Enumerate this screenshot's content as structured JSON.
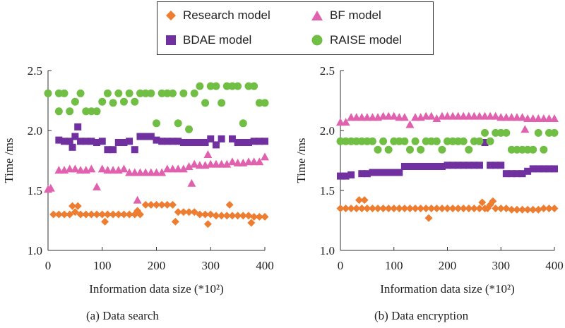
{
  "legend": [
    {
      "name": "Research model",
      "marker": "diamond",
      "color": "#ED7D31"
    },
    {
      "name": "BF model",
      "marker": "triangle",
      "color": "#E062AF"
    },
    {
      "name": "BDAE model",
      "marker": "square",
      "color": "#7030A0"
    },
    {
      "name": "RAISE model",
      "marker": "circle",
      "color": "#70BF44"
    }
  ],
  "captions": {
    "left": "(a) Data search",
    "right": "(b) Data encryption"
  },
  "chart_data": [
    {
      "type": "scatter",
      "title": "(a) Data search",
      "xlabel": "Information data size (*10²)",
      "ylabel": "Time /ms",
      "xlim": [
        0,
        400
      ],
      "ylim": [
        1.0,
        2.5
      ],
      "xticks": [
        "0",
        "100",
        "200",
        "300",
        "400"
      ],
      "yticks": [
        "1.0",
        "1.5",
        "2.0",
        "2.5"
      ],
      "grid": false,
      "series": [
        {
          "name": "Research model",
          "marker": "diamond",
          "color": "#ED7D31",
          "x": [
            10,
            20,
            30,
            40,
            45,
            50,
            55,
            60,
            70,
            80,
            90,
            100,
            105,
            110,
            120,
            130,
            140,
            150,
            160,
            165,
            170,
            180,
            190,
            200,
            210,
            220,
            230,
            235,
            240,
            250,
            260,
            270,
            280,
            290,
            295,
            300,
            310,
            320,
            330,
            335,
            340,
            350,
            360,
            370,
            375,
            380,
            390,
            400
          ],
          "y": [
            1.3,
            1.3,
            1.3,
            1.3,
            1.37,
            1.32,
            1.37,
            1.3,
            1.3,
            1.3,
            1.3,
            1.3,
            1.24,
            1.3,
            1.3,
            1.3,
            1.3,
            1.3,
            1.3,
            1.33,
            1.3,
            1.38,
            1.38,
            1.38,
            1.38,
            1.38,
            1.38,
            1.24,
            1.32,
            1.32,
            1.32,
            1.32,
            1.3,
            1.3,
            1.22,
            1.3,
            1.29,
            1.29,
            1.29,
            1.38,
            1.29,
            1.29,
            1.29,
            1.29,
            1.23,
            1.28,
            1.28,
            1.28
          ]
        },
        {
          "name": "BF model",
          "marker": "triangle",
          "color": "#E062AF",
          "x": [
            0,
            5,
            20,
            30,
            40,
            50,
            60,
            70,
            80,
            90,
            100,
            110,
            120,
            130,
            140,
            150,
            160,
            165,
            170,
            180,
            190,
            200,
            210,
            220,
            230,
            240,
            250,
            260,
            265,
            270,
            280,
            290,
            295,
            300,
            310,
            320,
            330,
            340,
            350,
            360,
            370,
            380,
            390,
            400
          ],
          "y": [
            1.51,
            1.52,
            1.67,
            1.67,
            1.68,
            1.68,
            1.67,
            1.67,
            1.68,
            1.53,
            1.68,
            1.67,
            1.67,
            1.67,
            1.68,
            1.65,
            1.65,
            1.42,
            1.65,
            1.65,
            1.65,
            1.65,
            1.65,
            1.68,
            1.68,
            1.68,
            1.68,
            1.7,
            1.56,
            1.72,
            1.71,
            1.71,
            1.8,
            1.72,
            1.72,
            1.72,
            1.72,
            1.74,
            1.73,
            1.73,
            1.74,
            1.74,
            1.74,
            1.78
          ]
        },
        {
          "name": "BDAE model",
          "marker": "square",
          "color": "#7030A0",
          "x": [
            20,
            30,
            40,
            45,
            50,
            55,
            60,
            70,
            80,
            90,
            100,
            110,
            120,
            130,
            140,
            150,
            160,
            170,
            180,
            190,
            200,
            210,
            220,
            230,
            240,
            250,
            260,
            270,
            280,
            290,
            300,
            310,
            320,
            340,
            350,
            360,
            370,
            380,
            390,
            400
          ],
          "y": [
            1.92,
            1.91,
            1.91,
            1.86,
            1.95,
            2.03,
            1.91,
            1.91,
            1.91,
            1.9,
            1.91,
            1.84,
            1.84,
            1.9,
            1.9,
            1.91,
            1.84,
            1.95,
            1.95,
            1.95,
            1.92,
            1.91,
            1.91,
            1.91,
            1.91,
            1.9,
            1.9,
            1.9,
            1.9,
            1.9,
            1.93,
            1.88,
            1.93,
            1.93,
            1.9,
            1.9,
            1.9,
            1.91,
            1.91,
            1.91
          ]
        },
        {
          "name": "RAISE model",
          "marker": "circle",
          "color": "#70BF44",
          "x": [
            0,
            20,
            20,
            30,
            40,
            50,
            60,
            70,
            80,
            90,
            100,
            110,
            120,
            130,
            140,
            150,
            160,
            170,
            180,
            190,
            200,
            210,
            220,
            230,
            240,
            250,
            260,
            270,
            280,
            290,
            300,
            310,
            320,
            330,
            340,
            350,
            360,
            370,
            380,
            390,
            400
          ],
          "y": [
            2.31,
            2.16,
            2.31,
            2.31,
            2.16,
            2.24,
            2.31,
            2.16,
            2.16,
            2.16,
            2.24,
            2.31,
            2.23,
            2.31,
            2.24,
            2.31,
            2.24,
            2.31,
            2.31,
            2.31,
            2.06,
            2.31,
            2.31,
            2.31,
            2.06,
            2.31,
            2.01,
            2.31,
            2.37,
            2.23,
            2.37,
            2.37,
            2.23,
            2.37,
            2.37,
            2.37,
            2.06,
            2.37,
            2.37,
            2.23,
            2.23
          ]
        }
      ]
    },
    {
      "type": "scatter",
      "title": "(b) Data encryption",
      "xlabel": "Information data size (*10²)",
      "ylabel": "Time /ms",
      "xlim": [
        0,
        400
      ],
      "ylim": [
        1.0,
        2.5
      ],
      "xticks": [
        "0",
        "100",
        "200",
        "300",
        "400"
      ],
      "yticks": [
        "1.0",
        "1.5",
        "2.0",
        "2.5"
      ],
      "grid": false,
      "series": [
        {
          "name": "Research model",
          "marker": "diamond",
          "color": "#ED7D31",
          "x": [
            0,
            10,
            20,
            30,
            35,
            40,
            45,
            50,
            60,
            70,
            80,
            90,
            100,
            110,
            120,
            130,
            140,
            150,
            160,
            165,
            170,
            180,
            190,
            200,
            210,
            220,
            230,
            240,
            250,
            260,
            265,
            270,
            275,
            280,
            285,
            290,
            300,
            310,
            320,
            330,
            340,
            350,
            360,
            370,
            380,
            390,
            400
          ],
          "y": [
            1.35,
            1.35,
            1.35,
            1.35,
            1.42,
            1.35,
            1.42,
            1.35,
            1.35,
            1.35,
            1.35,
            1.35,
            1.35,
            1.35,
            1.35,
            1.35,
            1.35,
            1.35,
            1.35,
            1.27,
            1.35,
            1.35,
            1.35,
            1.35,
            1.35,
            1.35,
            1.35,
            1.35,
            1.35,
            1.35,
            1.4,
            1.35,
            1.35,
            1.38,
            1.41,
            1.35,
            1.35,
            1.35,
            1.34,
            1.34,
            1.34,
            1.34,
            1.34,
            1.34,
            1.35,
            1.35,
            1.35
          ]
        },
        {
          "name": "BF model",
          "marker": "triangle",
          "color": "#E062AF",
          "x": [
            0,
            10,
            20,
            30,
            40,
            50,
            60,
            70,
            80,
            90,
            100,
            110,
            120,
            130,
            140,
            150,
            160,
            170,
            180,
            190,
            200,
            210,
            220,
            230,
            240,
            250,
            260,
            270,
            280,
            290,
            300,
            310,
            320,
            330,
            340,
            345,
            350,
            360,
            370,
            380,
            390,
            400
          ],
          "y": [
            2.07,
            2.07,
            2.11,
            2.11,
            2.11,
            2.11,
            2.11,
            2.11,
            2.12,
            2.12,
            2.12,
            2.11,
            2.11,
            2.05,
            2.11,
            2.11,
            2.12,
            2.12,
            2.1,
            2.12,
            2.12,
            2.12,
            2.12,
            2.12,
            2.12,
            2.12,
            2.12,
            2.12,
            2.12,
            2.12,
            2.11,
            2.11,
            2.11,
            2.11,
            2.11,
            2.01,
            2.1,
            2.1,
            2.1,
            2.1,
            2.1,
            2.1
          ]
        },
        {
          "name": "BDAE model",
          "marker": "square",
          "color": "#7030A0",
          "x": [
            0,
            10,
            20,
            40,
            50,
            60,
            70,
            80,
            90,
            100,
            110,
            120,
            130,
            140,
            150,
            160,
            170,
            180,
            190,
            200,
            210,
            220,
            230,
            240,
            250,
            260,
            270,
            280,
            290,
            300,
            310,
            320,
            330,
            340,
            350,
            360,
            370,
            380,
            390,
            400
          ],
          "y": [
            1.62,
            1.62,
            1.63,
            1.64,
            1.64,
            1.65,
            1.65,
            1.65,
            1.65,
            1.65,
            1.65,
            1.7,
            1.7,
            1.7,
            1.7,
            1.7,
            1.7,
            1.7,
            1.7,
            1.71,
            1.71,
            1.71,
            1.71,
            1.71,
            1.71,
            1.71,
            1.9,
            1.71,
            1.71,
            1.71,
            1.64,
            1.64,
            1.64,
            1.64,
            1.66,
            1.68,
            1.68,
            1.68,
            1.68,
            1.68
          ]
        },
        {
          "name": "RAISE model",
          "marker": "circle",
          "color": "#70BF44",
          "x": [
            0,
            10,
            20,
            30,
            40,
            50,
            60,
            70,
            80,
            90,
            100,
            110,
            120,
            130,
            140,
            150,
            160,
            170,
            180,
            190,
            200,
            210,
            220,
            230,
            240,
            250,
            260,
            270,
            280,
            290,
            300,
            310,
            320,
            330,
            340,
            350,
            360,
            370,
            380,
            390,
            400
          ],
          "y": [
            1.91,
            1.91,
            1.91,
            1.91,
            1.91,
            1.91,
            1.91,
            1.84,
            1.91,
            1.84,
            1.91,
            1.91,
            1.91,
            1.84,
            1.91,
            1.84,
            1.91,
            1.91,
            1.91,
            1.84,
            1.91,
            1.91,
            1.91,
            1.91,
            1.84,
            1.91,
            1.91,
            1.98,
            1.91,
            1.98,
            1.98,
            1.98,
            1.84,
            1.84,
            1.84,
            1.84,
            1.84,
            1.98,
            1.84,
            1.98,
            1.98
          ]
        }
      ]
    }
  ]
}
